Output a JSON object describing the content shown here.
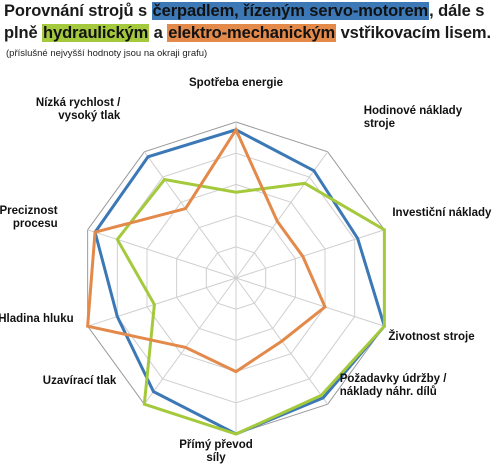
{
  "title": {
    "p1": "Porovnání strojů s ",
    "h1": "čerpadlem, řízeným servo-motorem",
    "p2": ", dále s plně ",
    "h2": "hydraulickým",
    "p3": " a ",
    "h3": "elektro-mechanickým",
    "p4": " vstřikovacím lisem."
  },
  "subtitle": "(příslušné nejvyšší hodnoty jsou na okraji grafu)",
  "chart_data": {
    "type": "radar",
    "categories": [
      [
        "Spotřeba energie"
      ],
      [
        "Hodinové náklady",
        "stroje"
      ],
      [
        "Investiční náklady"
      ],
      [
        "Životnost stroje"
      ],
      [
        "Požadavky údržby /",
        "náklady náhr. dílů"
      ],
      [
        "Přímý převod",
        "síly"
      ],
      [
        "Uzavírací tlak"
      ],
      [
        "Hladina hluku"
      ],
      [
        "Preciznost",
        "procesu"
      ],
      [
        "Nízká rychlost /",
        "vysoký tlak"
      ]
    ],
    "rlim": [
      0,
      1
    ],
    "gridlines": 5,
    "series": [
      {
        "color": "#3b78b5",
        "values": [
          0.95,
          0.85,
          0.82,
          1.0,
          0.95,
          1.0,
          0.9,
          0.8,
          0.95,
          0.96
        ]
      },
      {
        "color": "#a5c93c",
        "values": [
          0.55,
          0.75,
          1.0,
          1.0,
          0.93,
          1.0,
          1.0,
          0.55,
          0.8,
          0.78
        ]
      },
      {
        "color": "#e3894a",
        "values": [
          0.95,
          0.45,
          0.45,
          0.6,
          0.5,
          0.6,
          0.55,
          1.0,
          0.95,
          0.55
        ]
      }
    ]
  }
}
